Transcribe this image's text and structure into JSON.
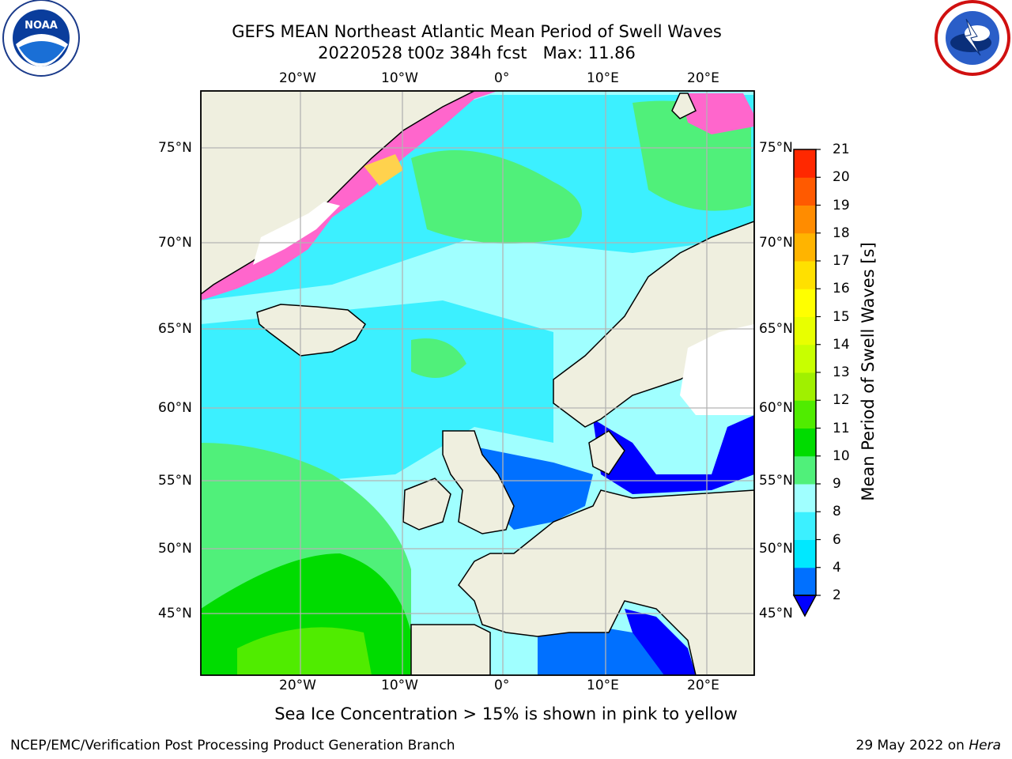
{
  "header": {
    "title_line1": "GEFS MEAN Northeast Atlantic Mean Period of Swell Waves",
    "title_line2": "20220528 t00z 384h fcst   Max: 11.86"
  },
  "logos": {
    "left": "noaa-logo",
    "right": "nws-logo"
  },
  "map": {
    "lon_ticks": [
      "20°W",
      "10°W",
      "0°",
      "10°E",
      "20°E"
    ],
    "lat_ticks": [
      "75°N",
      "70°N",
      "65°N",
      "60°N",
      "55°N",
      "50°N",
      "45°N"
    ],
    "land_color": "#efefdf",
    "grid_color": "#b3b3b3"
  },
  "colorbar": {
    "title": "Mean Period of Swell Waves [s]",
    "levels": [
      "2",
      "4",
      "6",
      "8",
      "9",
      "10",
      "11",
      "12",
      "13",
      "14",
      "15",
      "16",
      "17",
      "18",
      "19",
      "20",
      "21"
    ],
    "colors": [
      "#0070ff",
      "#00e8ff",
      "#3cf0ff",
      "#a0ffff",
      "#50f07a",
      "#00dc00",
      "#50ec00",
      "#a0f000",
      "#c8ff00",
      "#e8ff00",
      "#ffff00",
      "#ffe000",
      "#ffb400",
      "#ff8c00",
      "#ff5a00",
      "#ff2800"
    ],
    "under_color": "#0000ff"
  },
  "caption": "Sea Ice Concentration > 15% is shown in pink to yellow",
  "footer": {
    "left": "NCEP/EMC/Verification Post Processing Product Generation Branch",
    "right_prefix": "29 May 2022 on ",
    "right_host": "Hera"
  }
}
